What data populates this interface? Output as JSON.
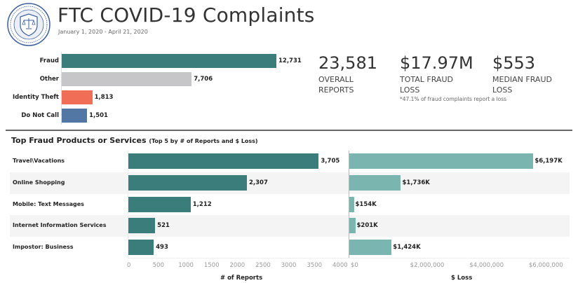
{
  "header": {
    "logo_icon": "ftc-seal-logo",
    "title": "FTC COVID-19 Complaints",
    "date_range": "January 1, 2020 - April 21, 2020"
  },
  "colors": {
    "fraud": "#3b7d7a",
    "other": "#c6c6c8",
    "identity_theft": "#f06e56",
    "do_not_call": "#5377a5",
    "loss_bar": "#7ab5b0",
    "band": "#f4f4f4"
  },
  "kpis": [
    {
      "value": "23,581",
      "label_line1": "OVERALL",
      "label_line2": "REPORTS"
    },
    {
      "value": "$17.97M",
      "label_line1": "TOTAL FRAUD",
      "label_line2": "LOSS",
      "note": "*47.1% of fraud complaints report a loss"
    },
    {
      "value": "$553",
      "label_line1": "MEDIAN FRAUD",
      "label_line2": "LOSS"
    }
  ],
  "section": {
    "title": "Top Fraud Products or Services",
    "subtitle": "(Top 5 by # of Reports and $ Loss)"
  },
  "chart_data": [
    {
      "type": "bar",
      "title": "Complaint Categories",
      "orientation": "horizontal",
      "categories": [
        "Fraud",
        "Other",
        "Identity Theft",
        "Do Not Call"
      ],
      "values": [
        12731,
        7706,
        1813,
        1501
      ],
      "value_labels": [
        "12,731",
        "7,706",
        "1,813",
        "1,501"
      ],
      "colors": [
        "#3b7d7a",
        "#c6c6c8",
        "#f06e56",
        "#5377a5"
      ],
      "xlim": [
        0,
        12731
      ]
    },
    {
      "type": "bar",
      "title": "Top Fraud Products or Services - # of Reports",
      "orientation": "horizontal",
      "categories": [
        "Travel\\Vacations",
        "Online Shopping",
        "Mobile: Text Messages",
        "Internet Information Services",
        "Impostor: Business"
      ],
      "values": [
        3705,
        2307,
        1212,
        521,
        493
      ],
      "value_labels": [
        "3,705",
        "2,307",
        "1,212",
        "521",
        "493"
      ],
      "xlabel": "# of Reports",
      "xlim": [
        0,
        4000
      ],
      "xticks": [
        0,
        500,
        1000,
        1500,
        2000,
        2500,
        3000,
        3500,
        4000
      ],
      "xtick_labels": [
        "0",
        "500",
        "1000",
        "1500",
        "2000",
        "2500",
        "3000",
        "3500",
        "4000"
      ],
      "color": "#3b7d7a"
    },
    {
      "type": "bar",
      "title": "Top Fraud Products or Services - $ Loss",
      "orientation": "horizontal",
      "categories": [
        "Travel\\Vacations",
        "Online Shopping",
        "Mobile: Text Messages",
        "Internet Information Services",
        "Impostor: Business"
      ],
      "values": [
        6197000,
        1736000,
        154000,
        201000,
        1424000
      ],
      "value_labels": [
        "$6,197K",
        "$1,736K",
        "$154K",
        "$201K",
        "$1,424K"
      ],
      "xlabel": "$ Loss",
      "xlim": [
        0,
        7400000
      ],
      "xticks": [
        0,
        2000000,
        4000000,
        6000000
      ],
      "xtick_labels": [
        "$0",
        "$2,000,000",
        "$4,000,000",
        "$6,000,000"
      ],
      "color": "#7ab5b0"
    }
  ]
}
